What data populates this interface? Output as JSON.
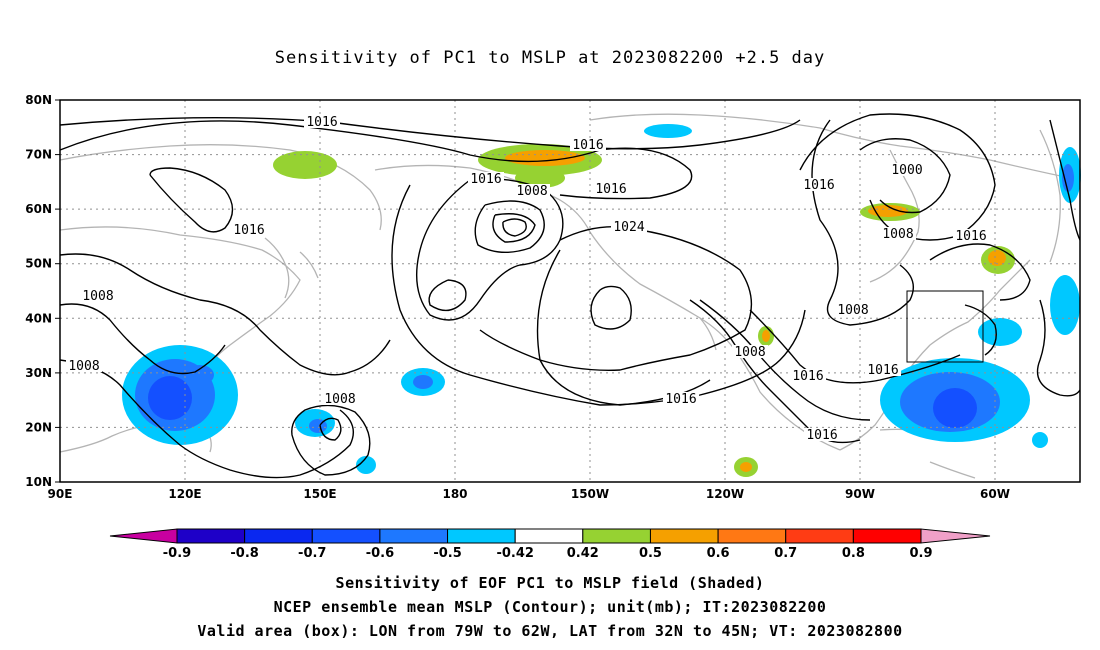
{
  "title": "Sensitivity of PC1 to MSLP at 2023082200 +2.5 day",
  "map": {
    "lat_labels": [
      "80N",
      "70N",
      "60N",
      "50N",
      "40N",
      "30N",
      "20N",
      "10N"
    ],
    "lon_labels": [
      "90E",
      "120E",
      "150E",
      "180",
      "150W",
      "120W",
      "90W",
      "60W"
    ],
    "contour_labels": [
      "1016",
      "1016",
      "1016",
      "1008",
      "1016",
      "1024",
      "1016",
      "1016",
      "1000",
      "1008",
      "1016",
      "1008",
      "1008",
      "1008",
      "1008",
      "1016",
      "1016",
      "1016",
      "1008",
      "1016"
    ],
    "box": {
      "lon_west": "79W",
      "lon_east": "62W",
      "lat_south": "32N",
      "lat_north": "45N"
    }
  },
  "colorbar": {
    "labels": [
      "-0.9",
      "-0.8",
      "-0.7",
      "-0.6",
      "-0.5",
      "-0.42",
      "0.42",
      "0.5",
      "0.6",
      "0.7",
      "0.8",
      "0.9"
    ],
    "colors": [
      "#1e00c8",
      "#0a28f0",
      "#1450ff",
      "#1e78ff",
      "#00c8ff",
      "#ffffff",
      "#96d232",
      "#f5a000",
      "#ff7814",
      "#ff3c14",
      "#ff0000"
    ],
    "under_color": "#c800a0",
    "over_color": "#f0a0c8"
  },
  "captions": [
    "Sensitivity of EOF PC1 to MSLP field (Shaded)",
    "NCEP ensemble mean MSLP (Contour); unit(mb); IT:2023082200",
    "Valid area (box): LON from 79W to 62W, LAT from 32N to 45N; VT: 2023082800"
  ]
}
